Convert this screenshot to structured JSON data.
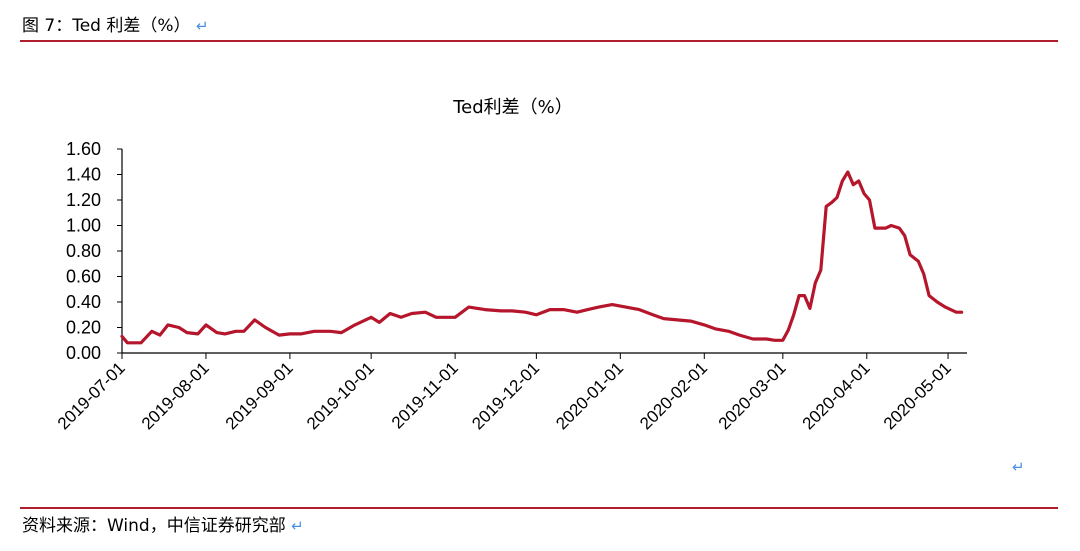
{
  "caption": {
    "text": "图 7：Ted 利差（%）",
    "return_mark": "↵"
  },
  "source": {
    "text": "资料来源：Wind，中信证券研究部",
    "return_mark": "↵"
  },
  "mid_return_mark": "↵",
  "colors": {
    "line": "#b5162b",
    "rule": "#b01e2e",
    "return_mark": "#4a90e2"
  },
  "chart_data": {
    "type": "line",
    "title": "Ted利差（%）",
    "xlabel": "",
    "ylabel": "",
    "ylim": [
      0,
      1.6
    ],
    "yticks": [
      "0.00",
      "0.20",
      "0.40",
      "0.60",
      "0.80",
      "1.00",
      "1.20",
      "1.40",
      "1.60"
    ],
    "xticks": [
      "2019-07-01",
      "2019-08-01",
      "2019-09-01",
      "2019-10-01",
      "2019-11-01",
      "2019-12-01",
      "2020-01-01",
      "2020-02-01",
      "2020-03-01",
      "2020-04-01",
      "2020-05-01"
    ],
    "grid": false,
    "legend": "none",
    "series": [
      {
        "x": [
          "2019-07-01",
          "2019-07-03",
          "2019-07-08",
          "2019-07-12",
          "2019-07-15",
          "2019-07-18",
          "2019-07-22",
          "2019-07-25",
          "2019-07-29",
          "2019-08-01",
          "2019-08-05",
          "2019-08-08",
          "2019-08-12",
          "2019-08-15",
          "2019-08-19",
          "2019-08-23",
          "2019-08-28",
          "2019-09-01",
          "2019-09-05",
          "2019-09-10",
          "2019-09-16",
          "2019-09-20",
          "2019-09-25",
          "2019-10-01",
          "2019-10-04",
          "2019-10-08",
          "2019-10-12",
          "2019-10-16",
          "2019-10-21",
          "2019-10-25",
          "2019-10-29",
          "2019-11-01",
          "2019-11-06",
          "2019-11-12",
          "2019-11-18",
          "2019-11-22",
          "2019-11-27",
          "2019-12-01",
          "2019-12-06",
          "2019-12-11",
          "2019-12-16",
          "2019-12-20",
          "2019-12-24",
          "2019-12-29",
          "2020-01-03",
          "2020-01-08",
          "2020-01-13",
          "2020-01-17",
          "2020-01-22",
          "2020-01-27",
          "2020-02-01",
          "2020-02-05",
          "2020-02-10",
          "2020-02-14",
          "2020-02-19",
          "2020-02-24",
          "2020-02-27",
          "2020-03-01",
          "2020-03-03",
          "2020-03-05",
          "2020-03-07",
          "2020-03-09",
          "2020-03-11",
          "2020-03-13",
          "2020-03-15",
          "2020-03-17",
          "2020-03-19",
          "2020-03-21",
          "2020-03-23",
          "2020-03-25",
          "2020-03-27",
          "2020-03-29",
          "2020-03-31",
          "2020-04-02",
          "2020-04-04",
          "2020-04-06",
          "2020-04-08",
          "2020-04-10",
          "2020-04-13",
          "2020-04-15",
          "2020-04-17",
          "2020-04-20",
          "2020-04-22",
          "2020-04-24",
          "2020-04-27",
          "2020-04-30",
          "2020-05-04",
          "2020-05-06"
        ],
        "y": [
          0.13,
          0.08,
          0.08,
          0.17,
          0.14,
          0.22,
          0.2,
          0.16,
          0.15,
          0.22,
          0.16,
          0.15,
          0.17,
          0.17,
          0.26,
          0.2,
          0.14,
          0.15,
          0.15,
          0.17,
          0.17,
          0.16,
          0.22,
          0.28,
          0.24,
          0.31,
          0.28,
          0.31,
          0.32,
          0.28,
          0.28,
          0.28,
          0.36,
          0.34,
          0.33,
          0.33,
          0.32,
          0.3,
          0.34,
          0.34,
          0.32,
          0.34,
          0.36,
          0.38,
          0.36,
          0.34,
          0.3,
          0.27,
          0.26,
          0.25,
          0.22,
          0.19,
          0.17,
          0.14,
          0.11,
          0.11,
          0.1,
          0.1,
          0.18,
          0.3,
          0.45,
          0.45,
          0.35,
          0.55,
          0.65,
          1.15,
          1.18,
          1.22,
          1.35,
          1.42,
          1.32,
          1.35,
          1.25,
          1.2,
          0.98,
          0.98,
          0.98,
          1.0,
          0.98,
          0.92,
          0.77,
          0.72,
          0.62,
          0.45,
          0.4,
          0.36,
          0.32,
          0.32
        ]
      }
    ]
  }
}
